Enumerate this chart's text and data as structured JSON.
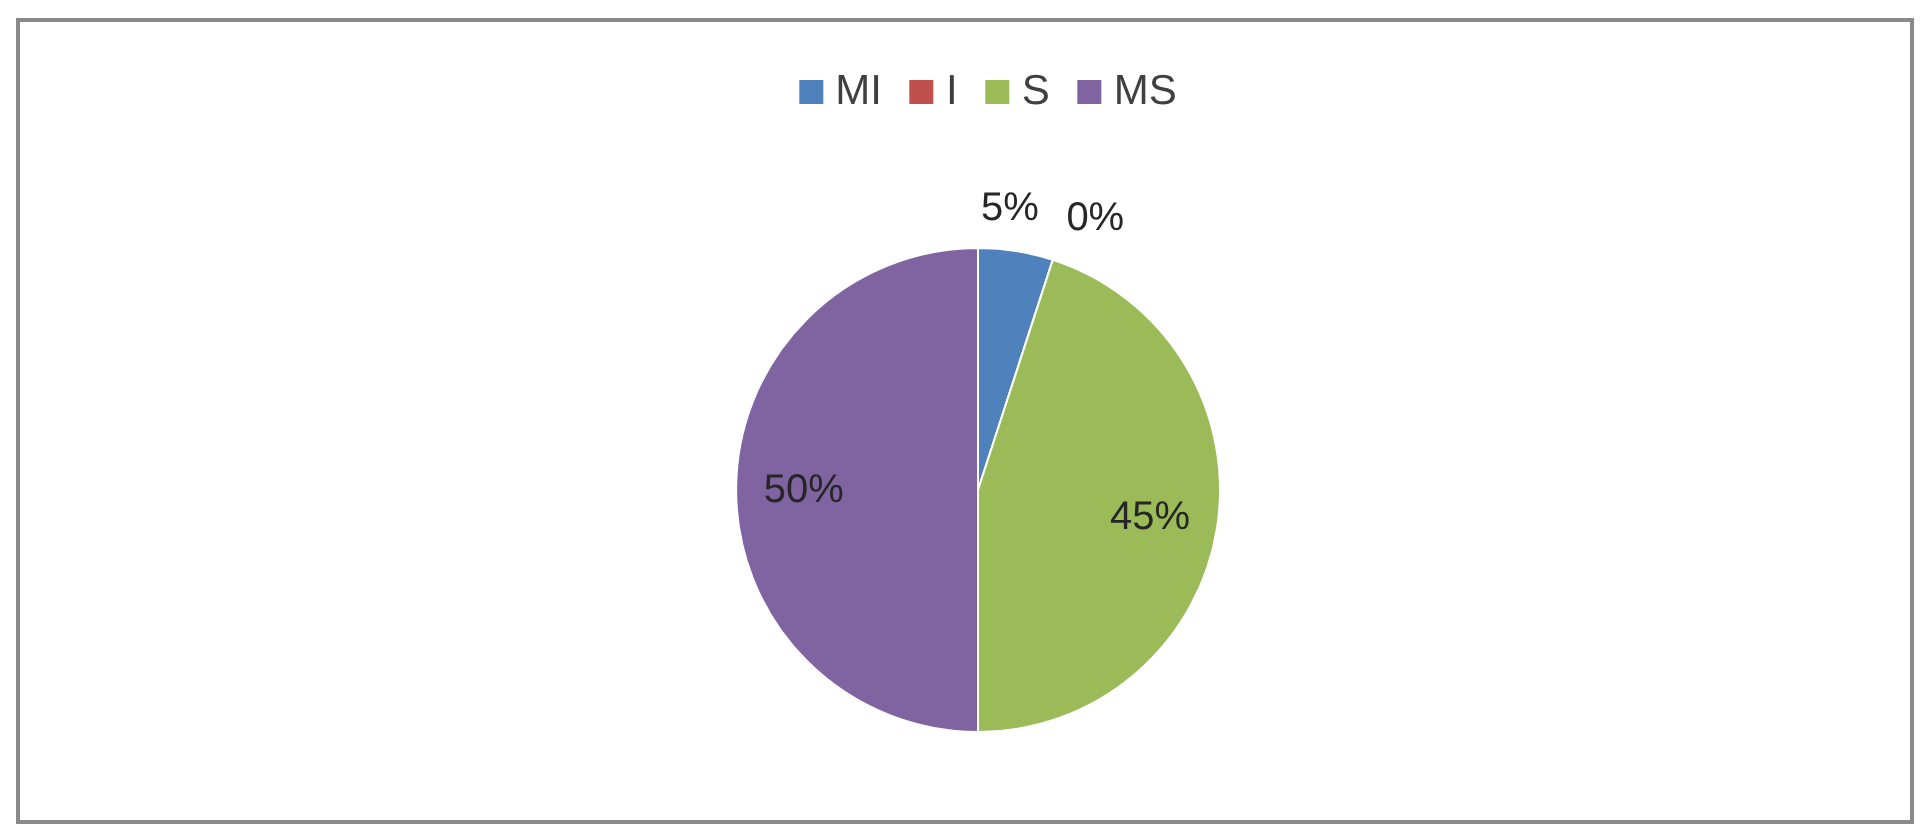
{
  "chart_data": {
    "type": "pie",
    "categories": [
      "MI",
      "I",
      "S",
      "MS"
    ],
    "values": [
      5,
      0,
      45,
      50
    ],
    "colors": [
      "#4f81bd",
      "#c0504d",
      "#9bbb59",
      "#8064a2"
    ],
    "value_labels": [
      "5%",
      "0%",
      "45%",
      "50%"
    ],
    "legend": "top"
  }
}
